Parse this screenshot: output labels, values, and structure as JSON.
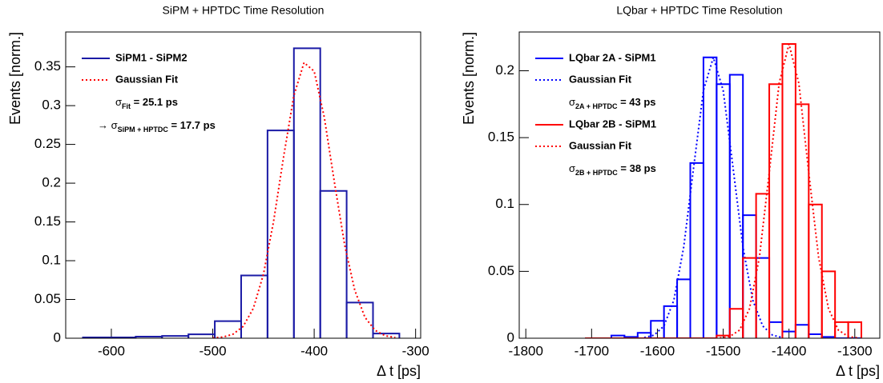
{
  "chart_data": [
    {
      "type": "histogram",
      "title": "SiPM + HPTDC Time Resolution",
      "x_label": "Δ t [ps]",
      "y_label": "Events [norm.]",
      "xlim": [
        -645,
        -295
      ],
      "ylim": [
        0,
        0.395
      ],
      "xticks": [
        -600,
        -500,
        -400,
        -300
      ],
      "yticks": [
        0,
        0.05,
        0.1,
        0.15,
        0.2,
        0.25,
        0.3,
        0.35
      ],
      "bins": [
        -628,
        -602,
        -576,
        -550,
        -524,
        -498,
        -472,
        -446,
        -420,
        -394,
        -368,
        -342,
        -316
      ],
      "series": [
        {
          "name": "SiPM1 - SiPM2",
          "color": "#1a1aa6",
          "style": "step",
          "values": [
            0.001,
            0.001,
            0.002,
            0.003,
            0.005,
            0.022,
            0.081,
            0.268,
            0.374,
            0.19,
            0.046,
            0.006
          ]
        },
        {
          "name": "Gaussian Fit",
          "color": "#ff0000",
          "style": "dotted",
          "x": [
            -500,
            -490,
            -480,
            -470,
            -460,
            -450,
            -440,
            -430,
            -420,
            -410,
            -400,
            -390,
            -380,
            -370,
            -360,
            -350,
            -340,
            -330,
            -320
          ],
          "values": [
            0.0004,
            0.0015,
            0.0052,
            0.0153,
            0.0385,
            0.0826,
            0.1509,
            0.2352,
            0.3131,
            0.3555,
            0.3444,
            0.2847,
            0.2007,
            0.1207,
            0.062,
            0.0271,
            0.0102,
            0.0032,
            0.0009
          ],
          "annotations": [
            {
              "symbol": "σ",
              "subscript": "Fit",
              "text": " = 25.1 ps"
            },
            {
              "prefix": "→ ",
              "symbol": "σ",
              "subscript": "SiPM + HPTDC",
              "text": " = 17.7 ps"
            }
          ]
        }
      ]
    },
    {
      "type": "histogram",
      "title": "LQbar + HPTDC Time Resolution",
      "x_label": "Δ t [ps]",
      "y_label": "Events [norm.]",
      "xlim": [
        -1810,
        -1262
      ],
      "ylim": [
        0,
        0.229
      ],
      "xticks": [
        -1800,
        -1700,
        -1600,
        -1500,
        -1400,
        -1300
      ],
      "yticks": [
        0,
        0.05,
        0.1,
        0.15,
        0.2
      ],
      "bins": [
        -1710,
        -1690,
        -1670,
        -1650,
        -1630,
        -1610,
        -1590,
        -1570,
        -1550,
        -1530,
        -1510,
        -1490,
        -1470,
        -1450,
        -1430,
        -1410,
        -1390,
        -1370,
        -1350,
        -1330,
        -1310,
        -1290
      ],
      "series": [
        {
          "name": "LQbar 2A - SiPM1",
          "color": "#0000ff",
          "style": "step",
          "values": [
            0,
            0,
            0.002,
            0.001,
            0.004,
            0.013,
            0.024,
            0.044,
            0.131,
            0.21,
            0.19,
            0.197,
            0.092,
            0.06,
            0.012,
            0.005,
            0.01,
            0.003,
            0.001,
            0,
            0
          ]
        },
        {
          "name": "Gaussian Fit",
          "color": "#0000ff",
          "style": "dotted",
          "x": [
            -1620,
            -1605,
            -1590,
            -1575,
            -1560,
            -1545,
            -1530,
            -1515,
            -1500,
            -1485,
            -1470,
            -1455,
            -1440,
            -1425,
            -1410
          ],
          "values": [
            0.0005,
            0.0023,
            0.0092,
            0.0284,
            0.0682,
            0.1274,
            0.1853,
            0.21,
            0.1853,
            0.1274,
            0.0682,
            0.0284,
            0.0092,
            0.0023,
            0.0005
          ],
          "annotations": [
            {
              "symbol": "σ",
              "subscript": "2A + HPTDC",
              "text": "  = 43 ps"
            }
          ]
        },
        {
          "name": "LQbar 2B - SiPM1",
          "color": "#ff0000",
          "style": "step",
          "values": [
            0,
            0,
            0,
            0,
            0,
            0,
            0,
            0,
            0,
            0,
            0.002,
            0.022,
            0.06,
            0.108,
            0.19,
            0.22,
            0.175,
            0.1,
            0.05,
            0.012,
            0.012
          ]
        },
        {
          "name": "Gaussian Fit",
          "color": "#ff0000",
          "style": "dotted",
          "x": [
            -1505,
            -1490,
            -1475,
            -1460,
            -1445,
            -1430,
            -1415,
            -1400,
            -1385,
            -1370,
            -1355,
            -1340,
            -1325,
            -1310,
            -1295
          ],
          "values": [
            0.0002,
            0.0013,
            0.0061,
            0.0222,
            0.0605,
            0.1239,
            0.1906,
            0.22,
            0.1906,
            0.1239,
            0.0605,
            0.0222,
            0.0061,
            0.0013,
            0.0002
          ],
          "annotations": [
            {
              "symbol": "σ",
              "subscript": "2B + HPTDC",
              "text": " = 38 ps"
            }
          ]
        }
      ]
    }
  ]
}
